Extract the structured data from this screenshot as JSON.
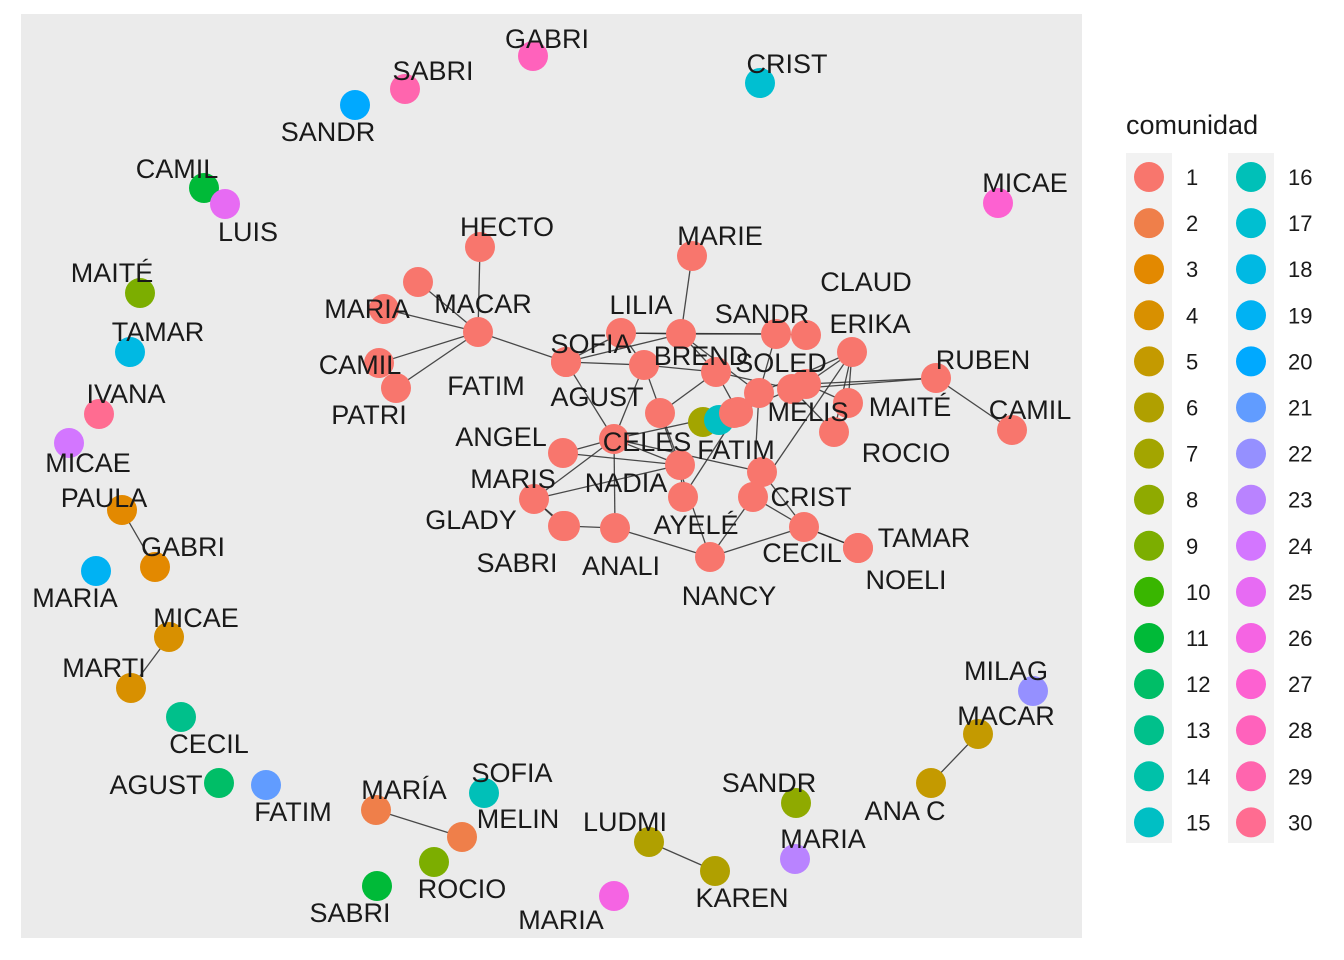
{
  "legend": {
    "title": "comunidad",
    "items": [
      {
        "id": 1,
        "color": "#F8766D"
      },
      {
        "id": 2,
        "color": "#EF7F4A"
      },
      {
        "id": 3,
        "color": "#E38900"
      },
      {
        "id": 4,
        "color": "#D89000"
      },
      {
        "id": 5,
        "color": "#C49A00"
      },
      {
        "id": 6,
        "color": "#B0A000"
      },
      {
        "id": 7,
        "color": "#A3A500"
      },
      {
        "id": 8,
        "color": "#8FAA00"
      },
      {
        "id": 9,
        "color": "#7CAE00"
      },
      {
        "id": 10,
        "color": "#39B600"
      },
      {
        "id": 11,
        "color": "#00BA38"
      },
      {
        "id": 12,
        "color": "#00BE67"
      },
      {
        "id": 13,
        "color": "#00C08B"
      },
      {
        "id": 14,
        "color": "#00C1A9"
      },
      {
        "id": 15,
        "color": "#00BFC4"
      },
      {
        "id": 16,
        "color": "#00C0B8"
      },
      {
        "id": 17,
        "color": "#00BFD1"
      },
      {
        "id": 18,
        "color": "#00B9E3"
      },
      {
        "id": 19,
        "color": "#00B2F3"
      },
      {
        "id": 20,
        "color": "#00A9FF"
      },
      {
        "id": 21,
        "color": "#619CFF"
      },
      {
        "id": 22,
        "color": "#9590FF"
      },
      {
        "id": 23,
        "color": "#B983FF"
      },
      {
        "id": 24,
        "color": "#D376FF"
      },
      {
        "id": 25,
        "color": "#E76BF3"
      },
      {
        "id": 26,
        "color": "#F564E3"
      },
      {
        "id": 27,
        "color": "#FD61D1"
      },
      {
        "id": 28,
        "color": "#FF62BC"
      },
      {
        "id": 29,
        "color": "#FF65AE"
      },
      {
        "id": 30,
        "color": "#FF6C91"
      }
    ]
  },
  "nodes": [
    {
      "id": "n1",
      "label": "GABRI",
      "community": 28
    },
    {
      "id": "n2",
      "label": "SABRI",
      "community": 29
    },
    {
      "id": "n3",
      "label": "SANDR",
      "community": 20
    },
    {
      "id": "n4",
      "label": "CRIST",
      "community": 17
    },
    {
      "id": "n5",
      "label": "CAMIL",
      "community": 11
    },
    {
      "id": "n6",
      "label": "LUIS",
      "community": 25
    },
    {
      "id": "n7",
      "label": "MICAE",
      "community": 27
    },
    {
      "id": "n8",
      "label": "MAITÉ",
      "community": 9
    },
    {
      "id": "n9",
      "label": "TAMAR",
      "community": 18
    },
    {
      "id": "n10",
      "label": "IVANA",
      "community": 30
    },
    {
      "id": "n11",
      "label": "MICAE",
      "community": 24
    },
    {
      "id": "n12",
      "label": "PAULA",
      "community": 3
    },
    {
      "id": "n13",
      "label": "GABRI",
      "community": 3
    },
    {
      "id": "n14",
      "label": "MARIA",
      "community": 19
    },
    {
      "id": "n15",
      "label": "MICAE",
      "community": 4
    },
    {
      "id": "n16",
      "label": "MARTI",
      "community": 4
    },
    {
      "id": "n17",
      "label": "CECIL",
      "community": 13
    },
    {
      "id": "n18",
      "label": "AGUST",
      "community": 12
    },
    {
      "id": "n19",
      "label": "FATIM",
      "community": 21
    },
    {
      "id": "n20",
      "label": "MARÍA",
      "community": 2
    },
    {
      "id": "n21",
      "label": "MELIN",
      "community": 2
    },
    {
      "id": "n22",
      "label": "SOFIA",
      "community": 16
    },
    {
      "id": "n23",
      "label": "ROCIO",
      "community": 9
    },
    {
      "id": "n24",
      "label": "SABRI",
      "community": 11
    },
    {
      "id": "n25",
      "label": "LUDMI",
      "community": 6
    },
    {
      "id": "n26",
      "label": "KAREN",
      "community": 6
    },
    {
      "id": "n27",
      "label": "MARIA",
      "community": 26
    },
    {
      "id": "n28",
      "label": "SANDR",
      "community": 8
    },
    {
      "id": "n29",
      "label": "MARIA",
      "community": 23
    },
    {
      "id": "n30",
      "label": "ANA C",
      "community": 5
    },
    {
      "id": "n31",
      "label": "MACAR",
      "community": 5
    },
    {
      "id": "n32",
      "label": "MILAG",
      "community": 22
    },
    {
      "id": "c1",
      "label": "HECTO",
      "community": 1
    },
    {
      "id": "c2",
      "label": "",
      "community": 1
    },
    {
      "id": "c3",
      "label": "MARIA",
      "community": 1
    },
    {
      "id": "c4",
      "label": "MACAR",
      "community": 1
    },
    {
      "id": "c5",
      "label": "CAMIL",
      "community": 1
    },
    {
      "id": "c6",
      "label": "PATRI",
      "community": 1
    },
    {
      "id": "c7",
      "label": "MARIE",
      "community": 1
    },
    {
      "id": "c8",
      "label": "LILIA",
      "community": 1
    },
    {
      "id": "c9",
      "label": "SANDR",
      "community": 1
    },
    {
      "id": "c10",
      "label": "CLAUD",
      "community": 1
    },
    {
      "id": "c11",
      "label": "ERIKA",
      "community": 1
    },
    {
      "id": "c12",
      "label": "SOFIA",
      "community": 1
    },
    {
      "id": "c13",
      "label": "FATIM",
      "community": 1
    },
    {
      "id": "c14",
      "label": "BREND",
      "community": 1
    },
    {
      "id": "c15",
      "label": "SOLED",
      "community": 1
    },
    {
      "id": "c16",
      "label": "RUBEN",
      "community": 1
    },
    {
      "id": "c17",
      "label": "CAMIL",
      "community": 1
    },
    {
      "id": "c18",
      "label": "AGUST",
      "community": 1
    },
    {
      "id": "c19",
      "label": "",
      "community": 1
    },
    {
      "id": "c20",
      "label": "",
      "community": 1
    },
    {
      "id": "c21",
      "label": "MELIS",
      "community": 1
    },
    {
      "id": "c22",
      "label": "MAITÉ",
      "community": 1
    },
    {
      "id": "c23",
      "label": "",
      "community": 1
    },
    {
      "id": "c24",
      "label": "",
      "community": 7
    },
    {
      "id": "c25",
      "label": "FATIM",
      "community": 15
    },
    {
      "id": "c26",
      "label": "",
      "community": 1
    },
    {
      "id": "c27",
      "label": "ANGEL",
      "community": 1
    },
    {
      "id": "c28",
      "label": "CELES",
      "community": 1
    },
    {
      "id": "c29",
      "label": "ROCIO",
      "community": 1
    },
    {
      "id": "c30",
      "label": "MARIS",
      "community": 1
    },
    {
      "id": "c31",
      "label": "NADIA",
      "community": 1
    },
    {
      "id": "c32",
      "label": "",
      "community": 1
    },
    {
      "id": "c33",
      "label": "",
      "community": 1
    },
    {
      "id": "c34",
      "label": "CRIST",
      "community": 1
    },
    {
      "id": "c35",
      "label": "GLADY",
      "community": 1
    },
    {
      "id": "c36",
      "label": "AYELÉ",
      "community": 1
    },
    {
      "id": "c37",
      "label": "SABRI",
      "community": 1
    },
    {
      "id": "c38",
      "label": "ANALI",
      "community": 1
    },
    {
      "id": "c39",
      "label": "CECIL",
      "community": 1
    },
    {
      "id": "c40",
      "label": "TAMAR",
      "community": 1
    },
    {
      "id": "c41",
      "label": "NOELI",
      "community": 1
    },
    {
      "id": "c42",
      "label": "NANCY",
      "community": 1
    }
  ],
  "edges": [
    [
      "n12",
      "n13"
    ],
    [
      "n15",
      "n16"
    ],
    [
      "n20",
      "n21"
    ],
    [
      "n25",
      "n26"
    ],
    [
      "n30",
      "n31"
    ],
    [
      "c1",
      "c4"
    ],
    [
      "c2",
      "c4"
    ],
    [
      "c3",
      "c4"
    ],
    [
      "c5",
      "c4"
    ],
    [
      "c6",
      "c4"
    ],
    [
      "c4",
      "c12"
    ],
    [
      "c13",
      "c12"
    ],
    [
      "c7",
      "c14"
    ],
    [
      "c8",
      "c9"
    ],
    [
      "c8",
      "c12"
    ],
    [
      "c8",
      "c18"
    ],
    [
      "c8",
      "c14"
    ],
    [
      "c9",
      "c10"
    ],
    [
      "c9",
      "c14"
    ],
    [
      "c9",
      "c15"
    ],
    [
      "c11",
      "c15"
    ],
    [
      "c11",
      "c20"
    ],
    [
      "c11",
      "c22"
    ],
    [
      "c11",
      "c29"
    ],
    [
      "c11",
      "c34"
    ],
    [
      "c12",
      "c14"
    ],
    [
      "c12",
      "c18"
    ],
    [
      "c12",
      "c28"
    ],
    [
      "c14",
      "c19"
    ],
    [
      "c14",
      "c15"
    ],
    [
      "c16",
      "c17"
    ],
    [
      "c16",
      "c20"
    ],
    [
      "c16",
      "c21"
    ],
    [
      "c18",
      "c19"
    ],
    [
      "c18",
      "c28"
    ],
    [
      "c18",
      "c31"
    ],
    [
      "c19",
      "c23"
    ],
    [
      "c19",
      "c21"
    ],
    [
      "c19",
      "c26"
    ],
    [
      "c20",
      "c21"
    ],
    [
      "c20",
      "c22"
    ],
    [
      "c21",
      "c23"
    ],
    [
      "c21",
      "c29"
    ],
    [
      "c23",
      "c15"
    ],
    [
      "c27",
      "c28"
    ],
    [
      "c27",
      "c31"
    ],
    [
      "c28",
      "c30"
    ],
    [
      "c28",
      "c38"
    ],
    [
      "c28",
      "c31"
    ],
    [
      "c28",
      "c32"
    ],
    [
      "c28",
      "c36"
    ],
    [
      "c30",
      "c35"
    ],
    [
      "c30",
      "c37"
    ],
    [
      "c30",
      "c31"
    ],
    [
      "c31",
      "c33"
    ],
    [
      "c32",
      "c34"
    ],
    [
      "c32",
      "c39"
    ],
    [
      "c33",
      "c23"
    ],
    [
      "c34",
      "c39"
    ],
    [
      "c34",
      "c42"
    ],
    [
      "c36",
      "c24"
    ],
    [
      "c37",
      "c38"
    ],
    [
      "c38",
      "c42"
    ],
    [
      "c39",
      "c40"
    ],
    [
      "c39",
      "c41"
    ],
    [
      "c39",
      "c42"
    ],
    [
      "c35",
      "c37"
    ],
    [
      "c34",
      "c15"
    ],
    [
      "c26",
      "c42"
    ]
  ]
}
